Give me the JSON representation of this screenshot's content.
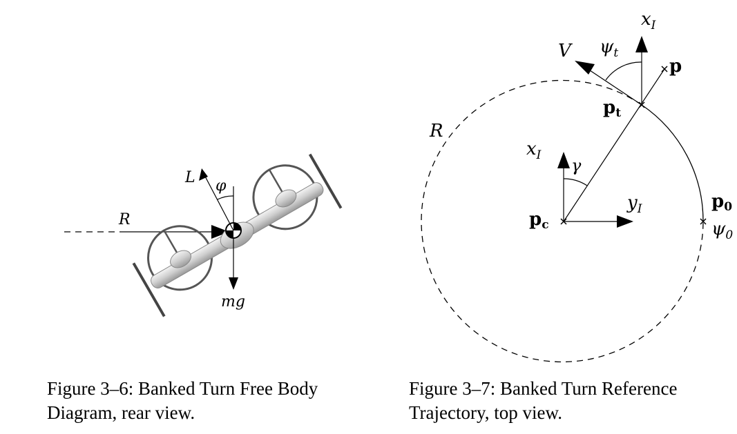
{
  "figure_1": {
    "labels": {
      "lift": "L",
      "bank_angle": "φ",
      "radius": "R",
      "weight": "mg"
    },
    "caption": {
      "line1": "Figure 3–6:  Banked Turn Free Body",
      "line2": "Diagram, rear view."
    }
  },
  "figure_2": {
    "labels": {
      "velocity": "V",
      "heading_t": "ψ",
      "heading_t_sub": "t",
      "x_axis_top": "x",
      "x_axis_top_sub": "I",
      "point_p": "p",
      "point_pt": "p",
      "point_pt_sub": "t",
      "radius": "R",
      "x_axis_center": "x",
      "x_axis_center_sub": "I",
      "gamma": "γ",
      "y_axis": "y",
      "y_axis_sub": "I",
      "point_pc": "p",
      "point_pc_sub": "c",
      "point_p0": "p",
      "point_p0_sub": "0",
      "heading_0": "ψ",
      "heading_0_sub": "0"
    },
    "caption": {
      "line1": "Figure 3–7:  Banked Turn Reference",
      "line2": "Trajectory, top view."
    }
  },
  "colors": {
    "ink": "#000000",
    "aircraft_body": "#d8d8d8",
    "aircraft_outline": "#555555"
  }
}
